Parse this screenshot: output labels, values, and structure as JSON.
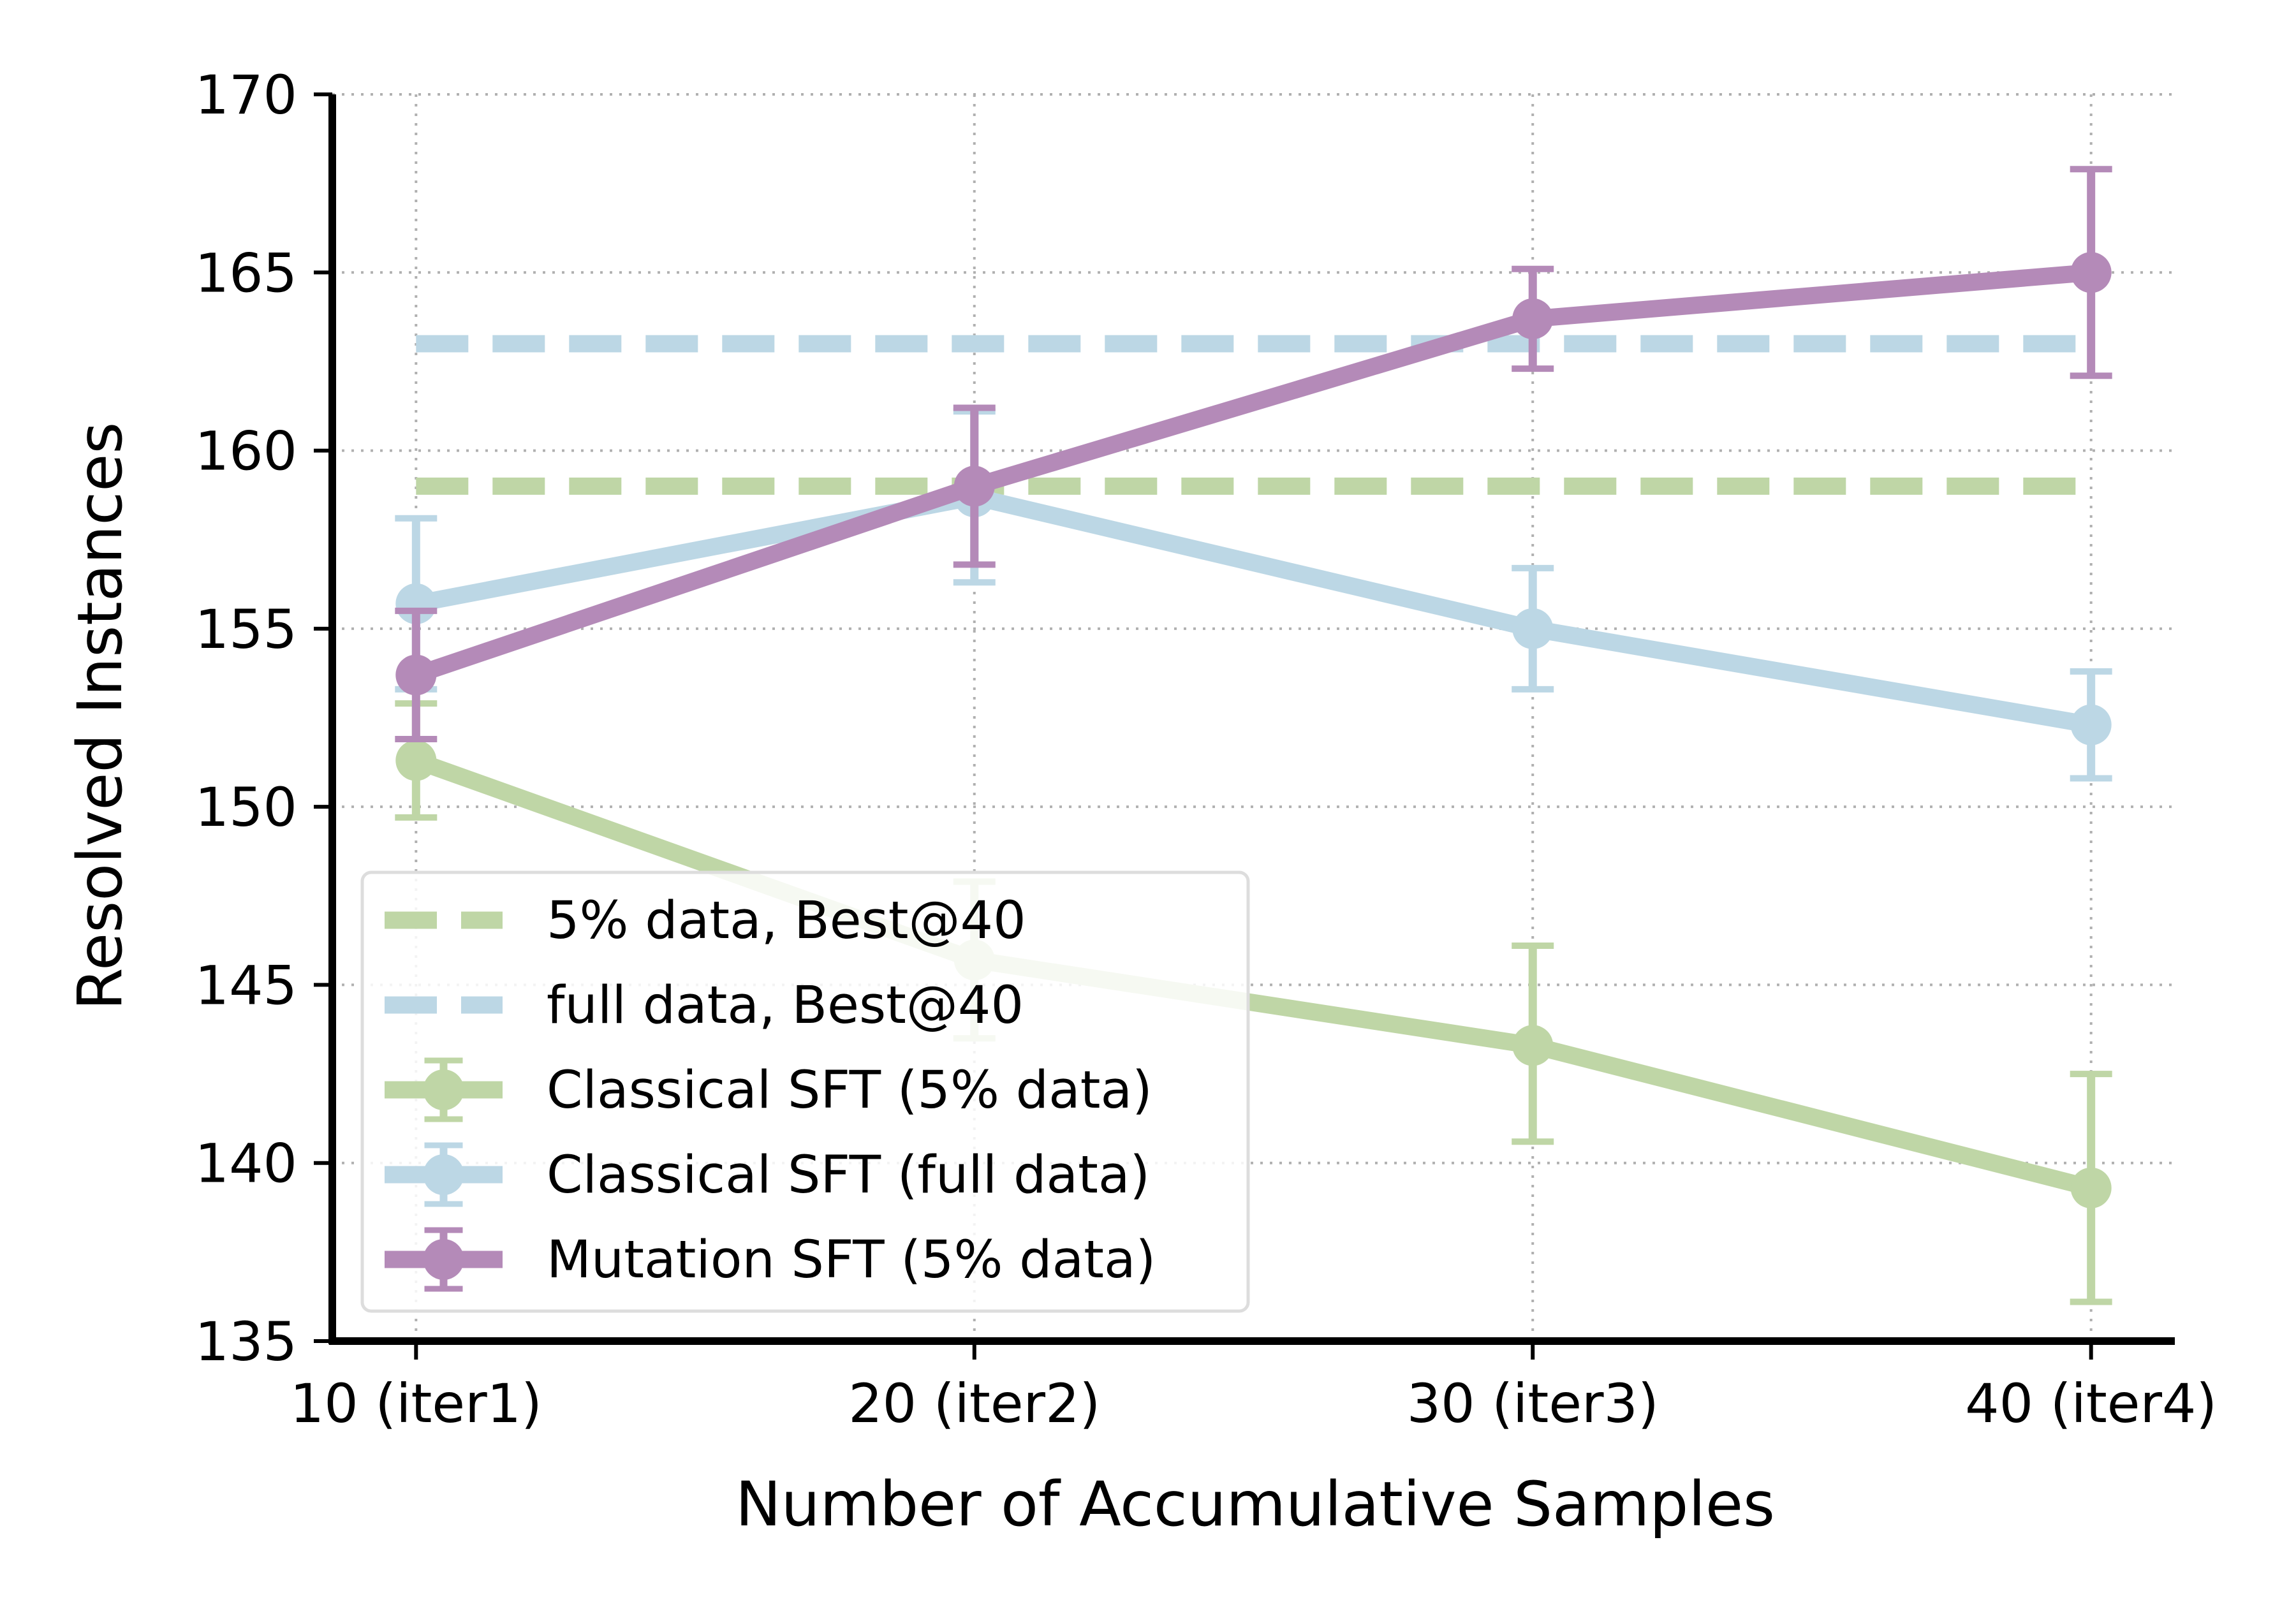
{
  "chart_data": {
    "type": "line",
    "xlabel": "Number of Accumulative Samples",
    "ylabel": "Resolved Instances",
    "categories": [
      "10 (iter1)",
      "20 (iter2)",
      "30 (iter3)",
      "40 (iter4)"
    ],
    "x": [
      10,
      20,
      30,
      40
    ],
    "ylim": [
      135,
      170
    ],
    "xlim": [
      8.5,
      41.5
    ],
    "yticks": [
      135,
      140,
      145,
      150,
      155,
      160,
      165,
      170
    ],
    "ytick_labels": [
      "135",
      "140",
      "145",
      "150",
      "155",
      "160",
      "165",
      "170"
    ],
    "grid": true,
    "legend_position": "lower-left",
    "reference_lines": [
      {
        "name": "5% data, Best@40",
        "value": 159,
        "color": "#bfd6a6",
        "style": "dashed"
      },
      {
        "name": "full data, Best@40",
        "value": 163,
        "color": "#bcd7e5",
        "style": "dashed"
      }
    ],
    "series": [
      {
        "name": "Classical SFT (5% data)",
        "color": "#bfd6a6",
        "values": [
          151.3,
          145.7,
          143.3,
          139.3
        ],
        "error_low": [
          149.7,
          143.5,
          140.6,
          136.1
        ],
        "error_high": [
          152.9,
          147.9,
          146.1,
          142.5
        ]
      },
      {
        "name": "Classical SFT (full data)",
        "color": "#bcd7e5",
        "values": [
          155.7,
          158.7,
          155.0,
          152.3
        ],
        "error_low": [
          153.3,
          156.3,
          153.3,
          150.8
        ],
        "error_high": [
          158.1,
          161.1,
          156.7,
          153.8
        ]
      },
      {
        "name": "Mutation SFT (5% data)",
        "color": "#b48ab8",
        "values": [
          153.7,
          159.0,
          163.7,
          165.0
        ],
        "error_low": [
          151.9,
          156.8,
          162.3,
          162.1
        ],
        "error_high": [
          155.5,
          161.2,
          165.1,
          167.9
        ]
      }
    ]
  }
}
